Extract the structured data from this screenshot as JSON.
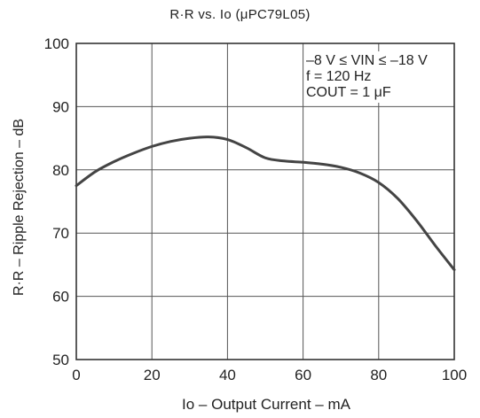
{
  "chart_data": {
    "type": "line",
    "title": "R·R vs. Io (μPC79L05)",
    "xlabel": "Io – Output Current – mA",
    "ylabel": "R·R – Ripple Rejection – dB",
    "xlim": [
      0,
      100
    ],
    "ylim": [
      50,
      100
    ],
    "xticks": [
      "0",
      "20",
      "40",
      "60",
      "80",
      "100"
    ],
    "yticks": [
      "50",
      "60",
      "70",
      "80",
      "90",
      "100"
    ],
    "grid": true,
    "annotations": [
      "–8 V ≤ VIN ≤ –18 V",
      "f = 120 Hz",
      "COUT = 1 μF"
    ],
    "series": [
      {
        "x": [
          0,
          5,
          10,
          15,
          20,
          25,
          30,
          35,
          40,
          45,
          50,
          55,
          60,
          65,
          70,
          75,
          80,
          85,
          90,
          95,
          100
        ],
        "y": [
          77.5,
          79.7,
          81.3,
          82.6,
          83.7,
          84.5,
          85.0,
          85.2,
          84.8,
          83.5,
          81.9,
          81.4,
          81.2,
          80.9,
          80.4,
          79.5,
          78.0,
          75.5,
          72.0,
          68.0,
          64.2
        ]
      }
    ]
  }
}
